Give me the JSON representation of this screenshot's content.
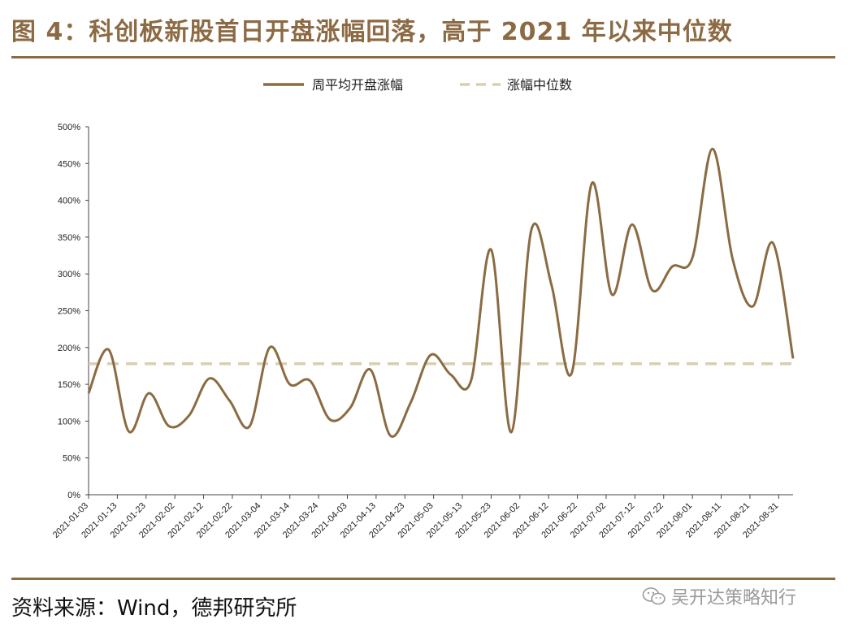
{
  "figure": {
    "title": "图 4：科创板新股首日开盘涨幅回落，高于 2021 年以来中位数",
    "source": "资料来源：Wind，德邦研究所",
    "watermark": "吴开达策略知行",
    "watermark_icon": "wechat-icon"
  },
  "colors": {
    "brand": "#8c6a43",
    "series": "#8b6b42",
    "median": "#d9ceb0"
  },
  "chart_data": {
    "type": "line",
    "title": "",
    "xlabel": "",
    "ylabel": "",
    "ylim": [
      0,
      500
    ],
    "y_ticks": [
      "0%",
      "50%",
      "100%",
      "150%",
      "200%",
      "250%",
      "300%",
      "350%",
      "400%",
      "450%",
      "500%"
    ],
    "x_tick_labels": [
      "2021-01-03",
      "2021-01-13",
      "2021-01-23",
      "2021-02-02",
      "2021-02-12",
      "2021-02-22",
      "2021-03-04",
      "2021-03-14",
      "2021-03-24",
      "2021-04-03",
      "2021-04-13",
      "2021-04-23",
      "2021-05-03",
      "2021-05-13",
      "2021-05-23",
      "2021-06-02",
      "2021-06-12",
      "2021-06-22",
      "2021-07-02",
      "2021-07-12",
      "2021-07-22",
      "2021-08-01",
      "2021-08-11",
      "2021-08-21",
      "2021-08-31"
    ],
    "x_range": [
      "2021-01-03",
      "2021-09-05"
    ],
    "grid": false,
    "legend_position": "top-center",
    "series": [
      {
        "name": "周平均开盘涨幅",
        "style": "solid",
        "x": [
          "2021-01-03",
          "2021-01-10",
          "2021-01-17",
          "2021-01-24",
          "2021-01-31",
          "2021-02-07",
          "2021-02-14",
          "2021-02-21",
          "2021-02-28",
          "2021-03-07",
          "2021-03-14",
          "2021-03-21",
          "2021-03-28",
          "2021-04-04",
          "2021-04-11",
          "2021-04-18",
          "2021-04-25",
          "2021-05-02",
          "2021-05-09",
          "2021-05-16",
          "2021-05-23",
          "2021-05-30",
          "2021-06-06",
          "2021-06-13",
          "2021-06-20",
          "2021-06-27",
          "2021-07-04",
          "2021-07-11",
          "2021-07-18",
          "2021-07-25",
          "2021-08-01",
          "2021-08-08",
          "2021-08-15",
          "2021-08-22",
          "2021-08-29",
          "2021-09-05"
        ],
        "values": [
          138,
          197,
          86,
          138,
          93,
          108,
          158,
          128,
          93,
          200,
          150,
          155,
          102,
          118,
          170,
          80,
          125,
          190,
          163,
          155,
          333,
          85,
          360,
          285,
          165,
          423,
          272,
          367,
          278,
          310,
          322,
          470,
          320,
          256,
          342,
          185
        ]
      },
      {
        "name": "涨幅中位数",
        "style": "dashed",
        "value": 178
      }
    ]
  }
}
